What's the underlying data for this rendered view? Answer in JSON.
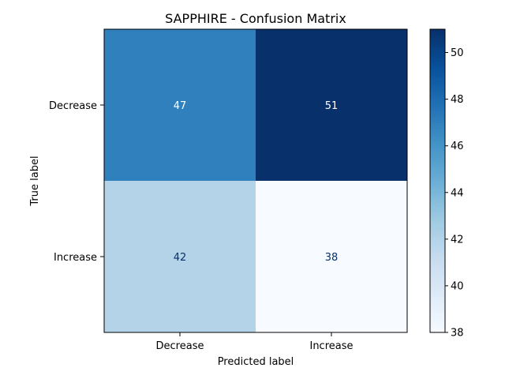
{
  "chart_data": {
    "type": "heatmap",
    "title": "SAPPHIRE - Confusion Matrix",
    "xlabel": "Predicted label",
    "ylabel": "True label",
    "x_categories": [
      "Decrease",
      "Increase"
    ],
    "y_categories": [
      "Decrease",
      "Increase"
    ],
    "values": [
      [
        47,
        51
      ],
      [
        42,
        38
      ]
    ],
    "colormap": "Blues",
    "colorbar": {
      "min": 38,
      "max": 51,
      "ticks": [
        38,
        40,
        42,
        44,
        46,
        48,
        50
      ]
    }
  }
}
